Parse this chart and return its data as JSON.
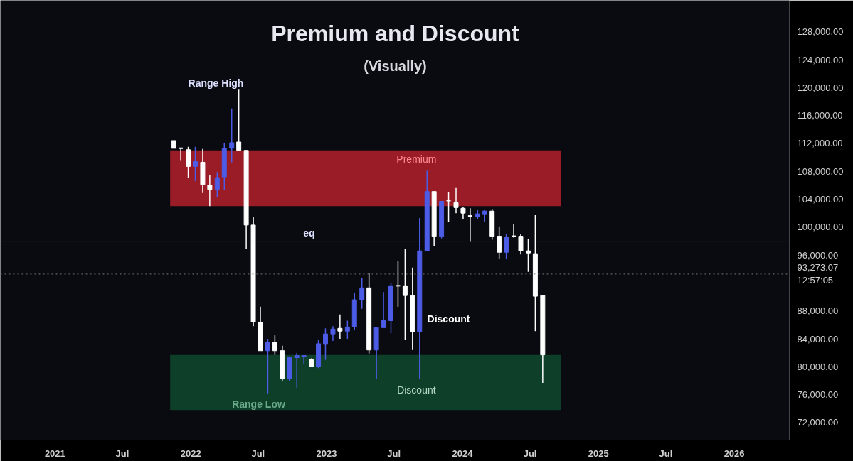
{
  "chart_data": {
    "type": "candlestick",
    "title": "Premium and Discount",
    "subtitle": "(Visually)",
    "x": [
      "2021-11-16",
      "2021-12-05",
      "2021-12-25",
      "2022-01-13",
      "2022-02-02",
      "2022-02-21",
      "2022-03-13",
      "2022-04-01",
      "2022-04-21",
      "2022-05-10",
      "2022-05-30",
      "2022-06-18",
      "2022-07-07",
      "2022-07-27",
      "2022-08-15",
      "2022-09-04",
      "2022-09-23",
      "2022-10-13",
      "2022-11-01",
      "2022-11-21",
      "2022-12-10",
      "2022-12-29",
      "2023-01-18",
      "2023-02-06",
      "2023-02-26",
      "2023-03-17",
      "2023-04-06",
      "2023-04-25",
      "2023-05-15",
      "2023-06-03",
      "2023-06-23",
      "2023-07-12",
      "2023-07-31",
      "2023-08-20",
      "2023-09-08",
      "2023-09-28",
      "2023-10-17",
      "2023-11-06",
      "2023-11-25",
      "2023-12-15",
      "2024-01-03",
      "2024-01-22",
      "2024-02-11",
      "2024-03-01",
      "2024-03-21",
      "2024-04-09",
      "2024-04-28",
      "2024-05-18",
      "2024-06-06",
      "2024-06-26",
      "2024-07-15",
      "2024-08-04"
    ],
    "ohlc": [
      [
        112400,
        112400,
        111300,
        111300
      ],
      [
        111300,
        111300,
        109600,
        111300
      ],
      [
        111100,
        111500,
        107100,
        108700
      ],
      [
        108700,
        111500,
        106600,
        109400
      ],
      [
        109300,
        111200,
        104900,
        106100
      ],
      [
        106000,
        107400,
        103000,
        105400
      ],
      [
        105400,
        107900,
        104300,
        107100
      ],
      [
        107200,
        112000,
        105300,
        111300
      ],
      [
        111300,
        117000,
        109300,
        112100
      ],
      [
        112200,
        119800,
        111000,
        111000
      ],
      [
        111000,
        111000,
        96900,
        100300
      ],
      [
        100300,
        101500,
        85800,
        86400
      ],
      [
        86400,
        88600,
        82300,
        82300
      ],
      [
        82300,
        84000,
        76200,
        83500
      ],
      [
        83500,
        84500,
        81700,
        82300
      ],
      [
        82300,
        83000,
        78000,
        78300
      ],
      [
        78300,
        81300,
        77900,
        81300
      ],
      [
        81300,
        82000,
        77000,
        81600
      ],
      [
        81400,
        81600,
        80400,
        81600
      ],
      [
        81000,
        81200,
        80000,
        80000
      ],
      [
        80000,
        83800,
        79800,
        83300
      ],
      [
        83300,
        85500,
        81000,
        84700
      ],
      [
        84700,
        85800,
        83700,
        85400
      ],
      [
        85500,
        87500,
        84000,
        85100
      ],
      [
        85100,
        86600,
        84000,
        85700
      ],
      [
        85700,
        90600,
        85300,
        89600
      ],
      [
        89600,
        92700,
        88300,
        91300
      ],
      [
        91300,
        93400,
        81900,
        82400
      ],
      [
        82400,
        85600,
        78200,
        85600
      ],
      [
        85600,
        90700,
        85600,
        86600
      ],
      [
        86600,
        92000,
        84800,
        91600
      ],
      [
        91600,
        95100,
        88600,
        91600
      ],
      [
        91600,
        96900,
        83800,
        90200
      ],
      [
        90200,
        94200,
        82400,
        85000
      ],
      [
        85000,
        101300,
        78200,
        96600
      ],
      [
        96600,
        108100,
        96600,
        105100
      ],
      [
        105100,
        105100,
        97300,
        98700
      ],
      [
        98700,
        103700,
        98400,
        103700
      ],
      [
        103800,
        105000,
        100700,
        103800
      ],
      [
        103500,
        105700,
        102000,
        102800
      ],
      [
        102700,
        102900,
        101200,
        102000
      ],
      [
        101600,
        102700,
        98000,
        101600
      ],
      [
        101500,
        102500,
        101100,
        101900
      ],
      [
        101900,
        102500,
        100800,
        102300
      ],
      [
        102300,
        102600,
        98200,
        98700
      ],
      [
        98700,
        100100,
        95500,
        96400
      ],
      [
        96400,
        99000,
        95500,
        98600
      ],
      [
        98700,
        100500,
        98500,
        98700
      ],
      [
        98700,
        99000,
        96100,
        96600
      ],
      [
        96600,
        98300,
        93600,
        96300
      ],
      [
        96200,
        101800,
        85100,
        90100
      ],
      [
        90200,
        90200,
        77700,
        81700
      ]
    ],
    "colors": [
      "#ffffff",
      "#ffffff",
      "#ffffff",
      "#4c5ce6",
      "#ffffff",
      "#ffffff",
      "#4c5ce6",
      "#4c5ce6",
      "#4c5ce6",
      "#ffffff",
      "#ffffff",
      "#ffffff",
      "#ffffff",
      "#4c5ce6",
      "#ffffff",
      "#ffffff",
      "#4c5ce6",
      "#4c5ce6",
      "#4c5ce6",
      "#ffffff",
      "#4c5ce6",
      "#4c5ce6",
      "#4c5ce6",
      "#ffffff",
      "#4c5ce6",
      "#4c5ce6",
      "#4c5ce6",
      "#ffffff",
      "#4c5ce6",
      "#4c5ce6",
      "#4c5ce6",
      "#ffffff",
      "#ffffff",
      "#ffffff",
      "#4c5ce6",
      "#4c5ce6",
      "#ffffff",
      "#4c5ce6",
      "#ffffff",
      "#ffffff",
      "#ffffff",
      "#ffffff",
      "#4c5ce6",
      "#4c5ce6",
      "#ffffff",
      "#ffffff",
      "#4c5ce6",
      "#ffffff",
      "#ffffff",
      "#ffffff",
      "#ffffff",
      "#ffffff"
    ],
    "xlim": [
      "2020-08-07",
      "2026-05-29"
    ],
    "xticks": [
      {
        "value": "2021-01-01",
        "label": "2021"
      },
      {
        "value": "2021-07-01",
        "label": "Jul"
      },
      {
        "value": "2022-01-01",
        "label": "2022"
      },
      {
        "value": "2022-07-01",
        "label": "Jul"
      },
      {
        "value": "2023-01-01",
        "label": "2023"
      },
      {
        "value": "2023-07-01",
        "label": "Jul"
      },
      {
        "value": "2024-01-01",
        "label": "2024"
      },
      {
        "value": "2024-07-01",
        "label": "Jul"
      },
      {
        "value": "2025-01-01",
        "label": "2025"
      },
      {
        "value": "2025-07-01",
        "label": "Jul"
      },
      {
        "value": "2026-01-01",
        "label": "2026"
      }
    ],
    "ylim": [
      69500,
      132500
    ],
    "yticks": [
      {
        "value": 72000,
        "label": "72,000.00"
      },
      {
        "value": 76000,
        "label": "76,000.00"
      },
      {
        "value": 80000,
        "label": "80,000.00"
      },
      {
        "value": 84000,
        "label": "84,000.00"
      },
      {
        "value": 88000,
        "label": "88,000.00"
      },
      {
        "value": 96000,
        "label": "96,000.00"
      },
      {
        "value": 100000,
        "label": "100,000.00"
      },
      {
        "value": 104000,
        "label": "104,000.00"
      },
      {
        "value": 108000,
        "label": "108,000.00"
      },
      {
        "value": 112000,
        "label": "112,000.00"
      },
      {
        "value": 116000,
        "label": "116,000.00"
      },
      {
        "value": 120000,
        "label": "120,000.00"
      },
      {
        "value": 124000,
        "label": "124,000.00"
      },
      {
        "value": 128000,
        "label": "128,000.00"
      }
    ],
    "bands": [
      {
        "axis": "y",
        "from": 103000,
        "to": 111000,
        "color": "#b3202a",
        "label": "Premium"
      },
      {
        "axis": "y",
        "from": 73800,
        "to": 81700,
        "color": "#0f4a2e",
        "label": "Discount"
      }
    ],
    "ref_lines": [
      {
        "axis": "y",
        "value": 97900,
        "color": "#5a5fa0",
        "label": "eq"
      },
      {
        "axis": "y",
        "value": 93273.07,
        "label": "93,273.07\n12:57:05",
        "color": "#777777",
        "line_style": "dotted"
      }
    ],
    "annotations": [
      "Range High",
      "Range Low",
      "Discount"
    ]
  }
}
